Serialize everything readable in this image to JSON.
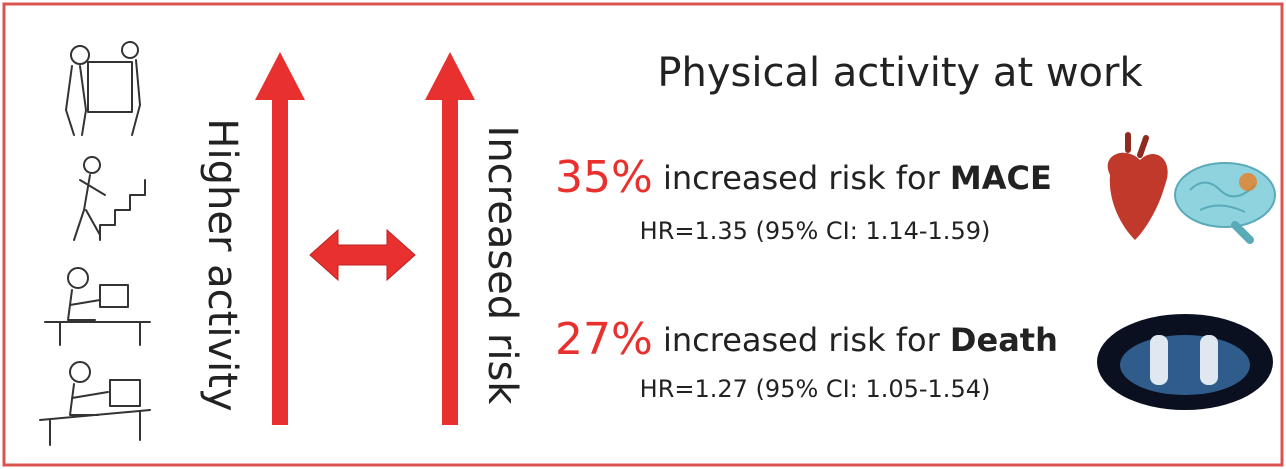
{
  "title": "Physical activity at work",
  "arrows": {
    "left_label": "Higher activity",
    "right_label": "Increased risk"
  },
  "findings": [
    {
      "percent": "35%",
      "text": "increased risk for",
      "outcome": "MACE",
      "hr": "HR=1.35 (95% CI: 1.14-1.59)"
    },
    {
      "percent": "27%",
      "text": "increased risk for",
      "outcome": "Death",
      "hr": "HR=1.27 (95% CI: 1.05-1.54)"
    }
  ]
}
